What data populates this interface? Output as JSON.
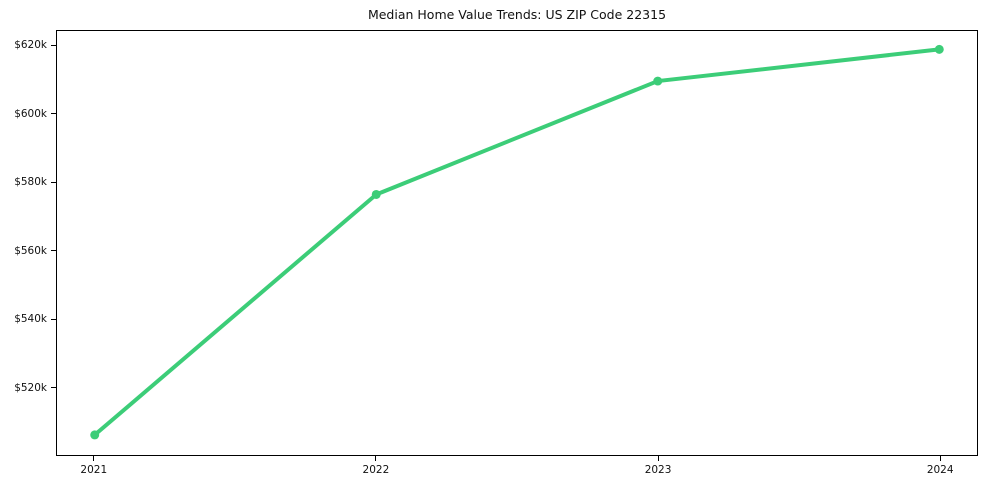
{
  "figure": {
    "background": "#ffffff",
    "axis_color": "#000000",
    "text_color": "#111111"
  },
  "chart_data": {
    "type": "line",
    "title": "Median Home Value Trends: US ZIP Code 22315",
    "xlabel": "",
    "ylabel": "",
    "x": [
      "2021",
      "2022",
      "2023",
      "2024"
    ],
    "series": [
      {
        "values": [
          505900,
          576500,
          609800,
          619100
        ],
        "color": "#3ccd78",
        "line_width": 4,
        "marker": "circle",
        "marker_radius": 4.5
      }
    ],
    "ylim": [
      500000,
      624500
    ],
    "y_ticks": [
      {
        "value": 520000,
        "label": "$520k"
      },
      {
        "value": 540000,
        "label": "$540k"
      },
      {
        "value": 560000,
        "label": "$560k"
      },
      {
        "value": 580000,
        "label": "$580k"
      },
      {
        "value": 600000,
        "label": "$600k"
      },
      {
        "value": 620000,
        "label": "$620k"
      }
    ],
    "grid": false,
    "legend": "none"
  }
}
